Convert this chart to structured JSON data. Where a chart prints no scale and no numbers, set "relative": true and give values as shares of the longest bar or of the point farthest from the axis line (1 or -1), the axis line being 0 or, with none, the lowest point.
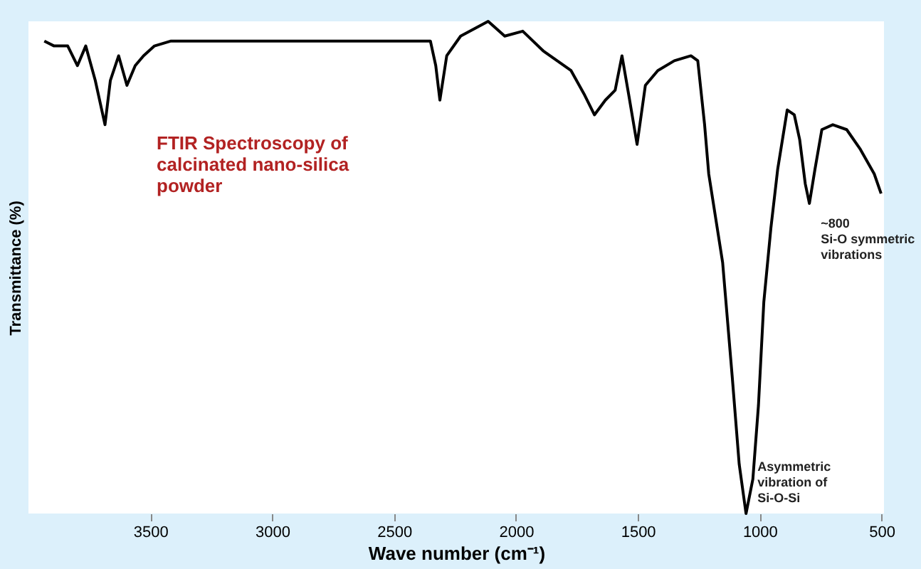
{
  "chart_data": {
    "type": "line",
    "relative": true,
    "xlabel": "Wave number (cm⁻¹)",
    "ylabel": "Transmittance (%)",
    "xlim": [
      4000,
      490
    ],
    "xticks": [
      3500,
      3000,
      2500,
      2000,
      1500,
      1000,
      500
    ],
    "grid": false,
    "marker": "none",
    "line_style": "solid",
    "annotations": [
      "FTIR Spectroscopy of\ncalcinated nano-silica\npowder",
      {
        "text": "~800\nSi-O symmetric\nvibrations",
        "x": 796,
        "y": 0.63
      },
      {
        "text": "Asymmetric\nvibration of\nSi-O-Si",
        "x": 1056,
        "y": 0
      }
    ],
    "series": [
      {
        "color": "#000000",
        "x": [
          3935,
          3895,
          3839,
          3799,
          3765,
          3726,
          3686,
          3664,
          3630,
          3596,
          3562,
          3528,
          3483,
          3415,
          3302,
          3019,
          2736,
          2453,
          2351,
          2329,
          2312,
          2284,
          2227,
          2114,
          2046,
          1972,
          1888,
          1774,
          1718,
          1678,
          1633,
          1593,
          1565,
          1537,
          1503,
          1469,
          1418,
          1350,
          1282,
          1254,
          1226,
          1209,
          1152,
          1113,
          1084,
          1056,
          1028,
          1005,
          983,
          954,
          926,
          887,
          858,
          836,
          813,
          796,
          773,
          745,
          700,
          643,
          587,
          530,
          502
        ],
        "values": [
          0.96,
          0.95,
          0.95,
          0.91,
          0.95,
          0.88,
          0.79,
          0.88,
          0.93,
          0.87,
          0.91,
          0.93,
          0.95,
          0.96,
          0.96,
          0.96,
          0.96,
          0.96,
          0.96,
          0.91,
          0.84,
          0.93,
          0.97,
          1.0,
          0.97,
          0.98,
          0.94,
          0.9,
          0.85,
          0.81,
          0.84,
          0.86,
          0.93,
          0.85,
          0.75,
          0.87,
          0.9,
          0.92,
          0.93,
          0.92,
          0.79,
          0.69,
          0.51,
          0.28,
          0.1,
          0.0,
          0.07,
          0.22,
          0.43,
          0.58,
          0.7,
          0.82,
          0.81,
          0.76,
          0.67,
          0.63,
          0.7,
          0.78,
          0.79,
          0.78,
          0.74,
          0.69,
          0.65
        ]
      }
    ]
  }
}
